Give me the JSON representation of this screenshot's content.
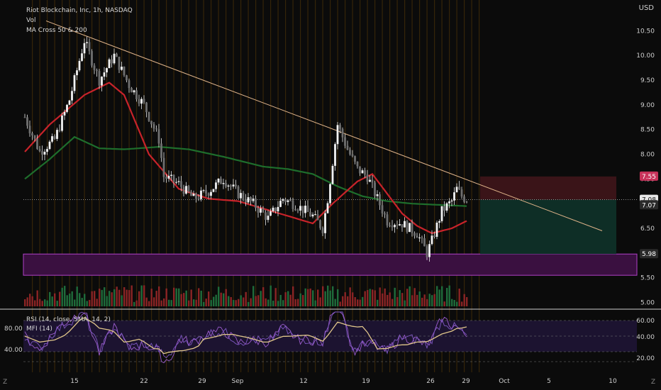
{
  "header": {
    "symbol_line": "Riot Blockchain, Inc, 1h, NASDAQ",
    "indicators": [
      "Vol",
      "MA Cross 50 & 200"
    ]
  },
  "rsi_panel": {
    "legend": [
      "RSI (14, close, SMA, 14, 2)",
      "MFI (14)"
    ]
  },
  "currency": "USD",
  "corner_icons": {
    "left": "Z",
    "right": "Z"
  },
  "colors": {
    "background": "#0b0b0b",
    "candle": "#e8e8e8",
    "ma50": "#c8232a",
    "ma200": "#1e6e2c",
    "trendline": "#e0b48a",
    "support_zone": "#3a1040",
    "support_border": "#b040c8",
    "target_zone": "#0e2e26",
    "stop_zone": "#3a1418",
    "rsi_line": "#7e57c2",
    "rsi_sma": "#e0c68a",
    "mfi_line": "#9c5ccc",
    "vol_up": "#1f6b3a",
    "vol_down": "#8a2424",
    "session_stripe": "#5a3a08"
  },
  "chart_data": {
    "type": "candlestick",
    "title": "Riot Blockchain, Inc, 1h, NASDAQ",
    "x_tick_labels": [
      "15",
      "22",
      "29",
      "Sep",
      "12",
      "19",
      "26",
      "29",
      "Oct",
      "5",
      "10"
    ],
    "y_tick_labels": [
      "10.50",
      "10.00",
      "9.50",
      "9.00",
      "8.50",
      "8.00",
      "7.50",
      "7.00",
      "6.50",
      "6.00",
      "5.50",
      "5.00"
    ],
    "ylim": [
      4.95,
      10.95
    ],
    "price_path": [
      [
        0,
        8.75
      ],
      [
        3,
        8.05
      ],
      [
        6,
        8.3
      ],
      [
        9,
        9.1
      ],
      [
        12,
        10.3
      ],
      [
        15,
        9.5
      ],
      [
        18,
        10.0
      ],
      [
        21,
        9.4
      ],
      [
        24,
        9.0
      ],
      [
        27,
        8.3
      ],
      [
        28,
        7.55
      ],
      [
        31,
        7.4
      ],
      [
        34,
        7.1
      ],
      [
        37,
        7.25
      ],
      [
        40,
        7.5
      ],
      [
        43,
        7.2
      ],
      [
        46,
        7.0
      ],
      [
        49,
        6.7
      ],
      [
        52,
        7.1
      ],
      [
        55,
        6.95
      ],
      [
        58,
        6.75
      ],
      [
        60,
        6.5
      ],
      [
        61,
        7.1
      ],
      [
        62,
        7.85
      ],
      [
        63,
        8.6
      ],
      [
        65,
        8.1
      ],
      [
        67,
        7.7
      ],
      [
        69,
        7.55
      ],
      [
        71,
        7.1
      ],
      [
        73,
        6.65
      ],
      [
        76,
        6.6
      ],
      [
        79,
        6.4
      ],
      [
        81,
        6.0
      ],
      [
        82,
        6.25
      ],
      [
        84,
        6.85
      ],
      [
        86,
        7.05
      ],
      [
        87,
        7.3
      ],
      [
        88,
        7.15
      ],
      [
        89,
        7.08
      ]
    ],
    "last_close": 7.08,
    "price_labels": [
      "7.55",
      "7.08",
      "7.07",
      "5.98"
    ],
    "ma50": [
      [
        0,
        8.05
      ],
      [
        5,
        8.6
      ],
      [
        12,
        9.2
      ],
      [
        17,
        9.45
      ],
      [
        20,
        9.2
      ],
      [
        25,
        8.0
      ],
      [
        31,
        7.3
      ],
      [
        37,
        7.1
      ],
      [
        43,
        7.05
      ],
      [
        48,
        6.9
      ],
      [
        53,
        6.75
      ],
      [
        58,
        6.6
      ],
      [
        62,
        7.0
      ],
      [
        67,
        7.45
      ],
      [
        70,
        7.6
      ],
      [
        73,
        7.2
      ],
      [
        76,
        6.8
      ],
      [
        79,
        6.55
      ],
      [
        82,
        6.4
      ],
      [
        86,
        6.5
      ],
      [
        89,
        6.65
      ]
    ],
    "ma200": [
      [
        0,
        7.5
      ],
      [
        5,
        7.9
      ],
      [
        10,
        8.35
      ],
      [
        15,
        8.12
      ],
      [
        20,
        8.1
      ],
      [
        27,
        8.15
      ],
      [
        33,
        8.1
      ],
      [
        40,
        7.95
      ],
      [
        48,
        7.75
      ],
      [
        53,
        7.7
      ],
      [
        58,
        7.6
      ],
      [
        63,
        7.35
      ],
      [
        68,
        7.15
      ],
      [
        73,
        7.05
      ],
      [
        78,
        7.0
      ],
      [
        89,
        6.95
      ]
    ],
    "trendline": {
      "from": [
        0,
        10.7
      ],
      "to": [
        112,
        6.45
      ]
    },
    "support_zone": [
      5.55,
      5.98
    ],
    "position": {
      "stop": 7.55,
      "entry": 7.08,
      "target": 5.98
    },
    "rsi": {
      "y_tick_labels": [
        "60.00",
        "40.00",
        "20.00"
      ],
      "left_tick_labels": [
        "80.00",
        "40.00"
      ],
      "levels": [
        70,
        50,
        30
      ]
    }
  }
}
